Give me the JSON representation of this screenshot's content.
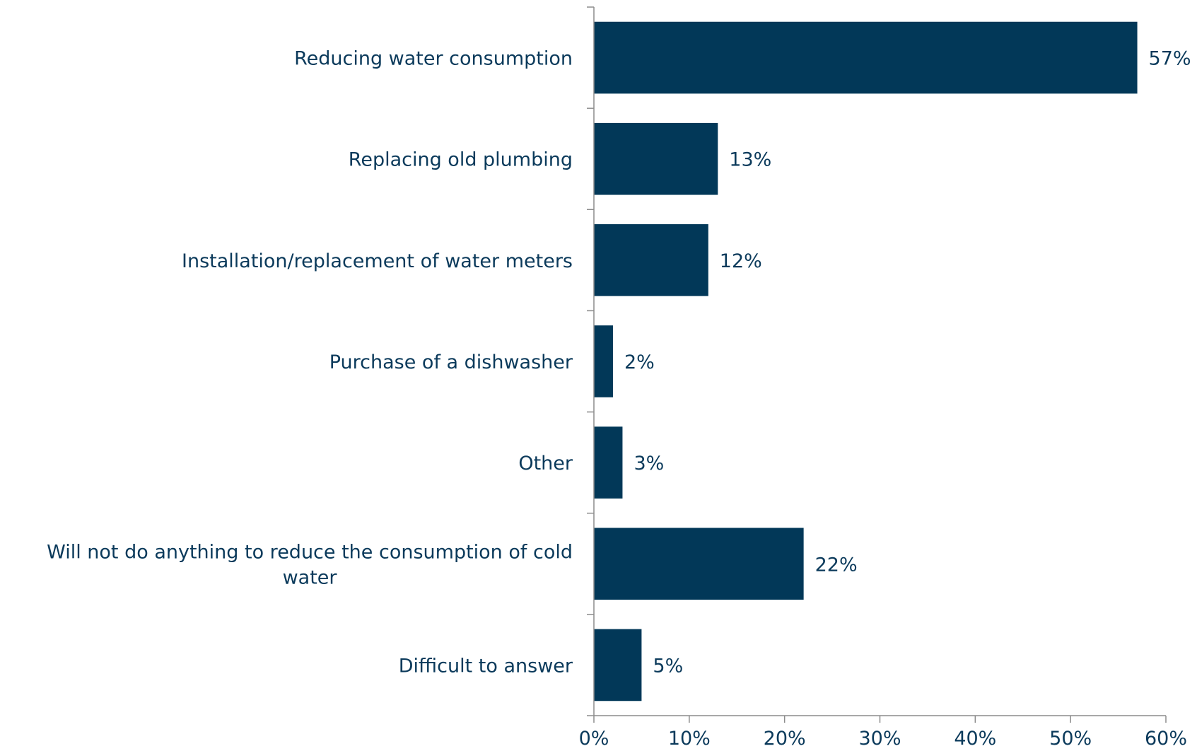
{
  "chart_data": {
    "type": "bar",
    "orientation": "horizontal",
    "categories": [
      [
        "Reducing water consumption"
      ],
      [
        "Replacing old plumbing"
      ],
      [
        "Installation/replacement of water meters"
      ],
      [
        "Purchase of a dishwasher"
      ],
      [
        "Other"
      ],
      [
        "Will not do anything to reduce the consumption of cold",
        "water"
      ],
      [
        "Difficult to answer"
      ]
    ],
    "values": [
      57,
      13,
      12,
      2,
      3,
      22,
      5
    ],
    "value_labels": [
      "57%",
      "13%",
      "12%",
      "2%",
      "3%",
      "22%",
      "5%"
    ],
    "xlim": [
      0,
      60
    ],
    "xticks": [
      0,
      10,
      20,
      30,
      40,
      50,
      60
    ],
    "xtick_labels": [
      "0%",
      "10%",
      "20%",
      "30%",
      "40%",
      "50%",
      "60%"
    ],
    "title": "",
    "xlabel": "",
    "ylabel": "",
    "grid": false,
    "legend": "none",
    "bar_color": "#023858"
  }
}
